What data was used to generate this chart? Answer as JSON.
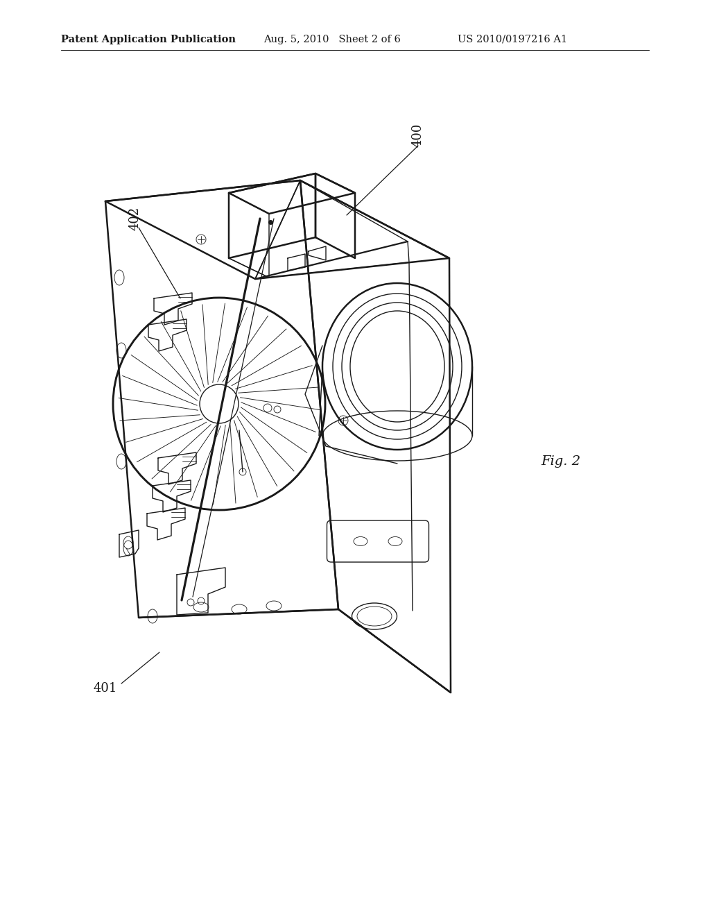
{
  "bg_color": "#ffffff",
  "header_left": "Patent Application Publication",
  "header_center": "Aug. 5, 2010   Sheet 2 of 6",
  "header_right": "US 2010/0197216 A1",
  "fig_label": "Fig. 2",
  "label_400": "400",
  "label_401": "401",
  "label_402": "402",
  "line_color": "#1a1a1a",
  "line_width": 1.8,
  "thin_line": 1.0,
  "very_thin": 0.6
}
